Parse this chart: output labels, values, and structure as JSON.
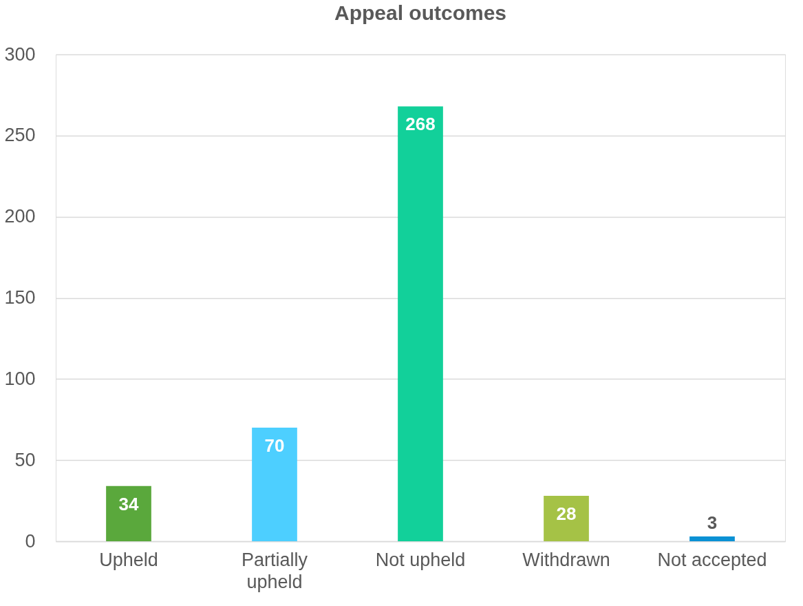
{
  "chart_data": {
    "type": "bar",
    "title": "Appeal outcomes",
    "categories": [
      "Upheld",
      "Partially upheld",
      "Not upheld",
      "Withdrawn",
      "Not accepted"
    ],
    "values": [
      34,
      70,
      268,
      28,
      3
    ],
    "colors": [
      "#5aa83c",
      "#4dcfff",
      "#12d09a",
      "#a5c246",
      "#0b91d4"
    ],
    "ylim": [
      0,
      300
    ],
    "yticks": [
      0,
      50,
      100,
      150,
      200,
      250,
      300
    ],
    "grid": "y",
    "data_labels": true
  }
}
